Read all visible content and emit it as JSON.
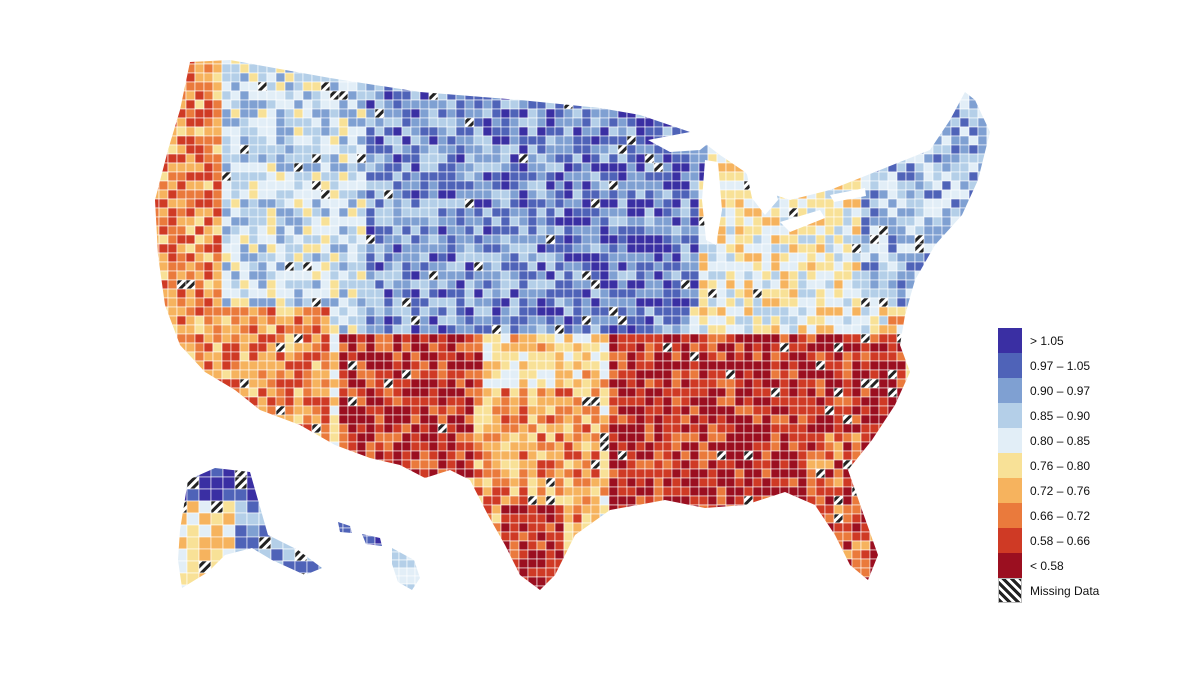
{
  "map": {
    "region": "United States counties",
    "legend": {
      "entries": [
        {
          "label": "> 1.05",
          "color": "#3a2fa3"
        },
        {
          "label": "0.97 – 1.05",
          "color": "#4f63b8"
        },
        {
          "label": "0.90 – 0.97",
          "color": "#7fa0d2"
        },
        {
          "label": "0.85 – 0.90",
          "color": "#b4cfe8"
        },
        {
          "label": "0.80 – 0.85",
          "color": "#e2eef7"
        },
        {
          "label": "0.76 – 0.80",
          "color": "#f8e197"
        },
        {
          "label": "0.72 – 0.76",
          "color": "#f6b35e"
        },
        {
          "label": "0.66 – 0.72",
          "color": "#ea7a3c"
        },
        {
          "label": "0.58 – 0.66",
          "color": "#cf3a25"
        },
        {
          "label": "< 0.58",
          "color": "#9b0f20"
        }
      ],
      "missing_label": "Missing Data"
    }
  }
}
